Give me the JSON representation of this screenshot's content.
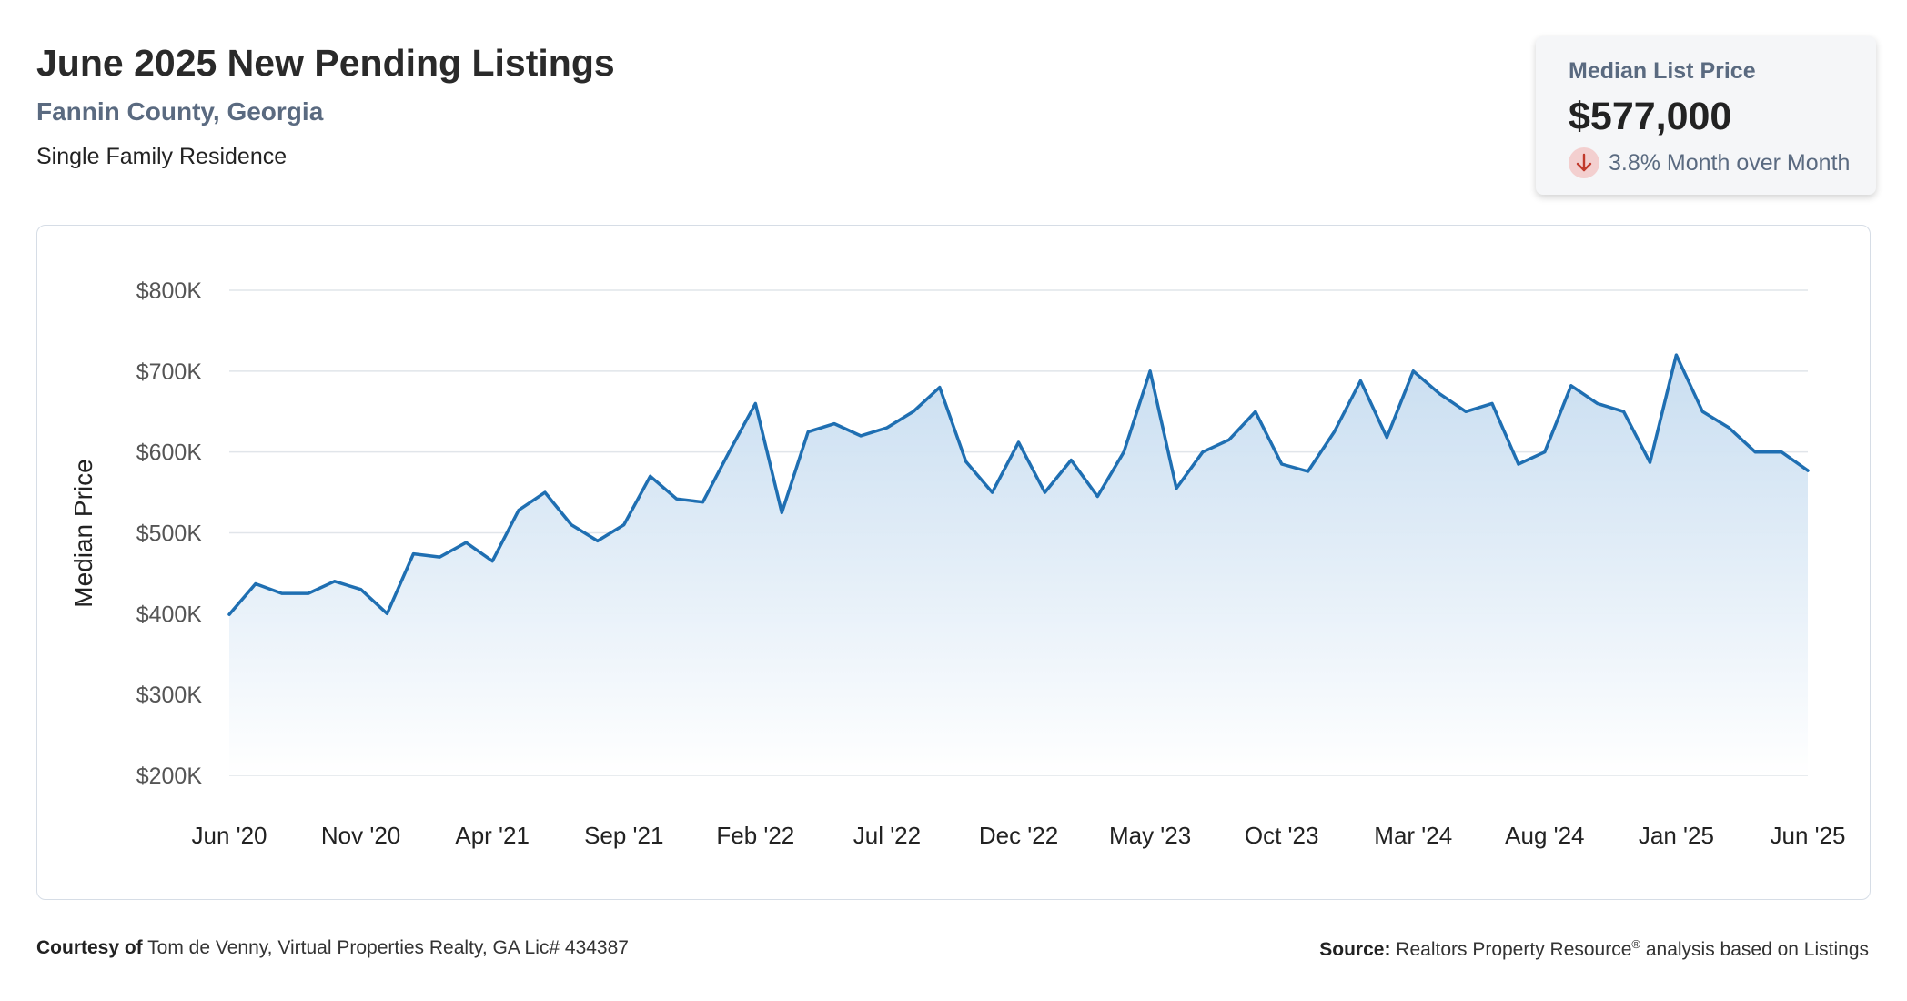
{
  "header": {
    "title": "June 2025 New Pending Listings",
    "subtitle": "Fannin County, Georgia",
    "category": "Single Family Residence"
  },
  "kpi": {
    "label": "Median List Price",
    "value": "$577,000",
    "change": "3.8% Month over Month",
    "direction_icon": "arrow-down-icon",
    "down_color": "#c0392b"
  },
  "footer": {
    "courtesy_label": "Courtesy of",
    "courtesy_text": "Tom de Venny, Virtual Properties Realty, GA Lic# 434387",
    "source_label": "Source:",
    "source_text_1": "Realtors Property Resource",
    "source_sup": "®",
    "source_text_2": "analysis based on Listings"
  },
  "chart_data": {
    "type": "area",
    "ylabel": "Median Price",
    "ylim": [
      200000,
      800000
    ],
    "yticks": [
      200000,
      300000,
      400000,
      500000,
      600000,
      700000,
      800000
    ],
    "ytick_labels": [
      "$200K",
      "$300K",
      "$400K",
      "$500K",
      "$600K",
      "$700K",
      "$800K"
    ],
    "x_tick_labels": [
      "Jun '20",
      "Nov '20",
      "Apr '21",
      "Sep '21",
      "Feb '22",
      "Jul '22",
      "Dec '22",
      "May '23",
      "Oct '23",
      "Mar '24",
      "Aug '24",
      "Jan '25",
      "Jun '25"
    ],
    "x_tick_every": 5,
    "grid": true,
    "line_color": "#1f6fb2",
    "fill_color": "#c9dff1",
    "x": [
      "Jun '20",
      "Jul '20",
      "Aug '20",
      "Sep '20",
      "Oct '20",
      "Nov '20",
      "Dec '20",
      "Jan '21",
      "Feb '21",
      "Mar '21",
      "Apr '21",
      "May '21",
      "Jun '21",
      "Jul '21",
      "Aug '21",
      "Sep '21",
      "Oct '21",
      "Nov '21",
      "Dec '21",
      "Jan '22",
      "Feb '22",
      "Mar '22",
      "Apr '22",
      "May '22",
      "Jun '22",
      "Jul '22",
      "Aug '22",
      "Sep '22",
      "Oct '22",
      "Nov '22",
      "Dec '22",
      "Jan '23",
      "Feb '23",
      "Mar '23",
      "Apr '23",
      "May '23",
      "Jun '23",
      "Jul '23",
      "Aug '23",
      "Sep '23",
      "Oct '23",
      "Nov '23",
      "Dec '23",
      "Jan '24",
      "Feb '24",
      "Mar '24",
      "Apr '24",
      "May '24",
      "Jun '24",
      "Jul '24",
      "Aug '24",
      "Sep '24",
      "Oct '24",
      "Nov '24",
      "Dec '24",
      "Jan '25",
      "Feb '25",
      "Mar '25",
      "Apr '25",
      "May '25",
      "Jun '25"
    ],
    "values": [
      399000,
      437000,
      425000,
      425000,
      440000,
      430000,
      400000,
      474000,
      470000,
      488000,
      465000,
      528000,
      550000,
      510000,
      490000,
      510000,
      570000,
      542000,
      538000,
      600000,
      660000,
      525000,
      625000,
      635000,
      620000,
      630000,
      650000,
      680000,
      588000,
      550000,
      612000,
      550000,
      590000,
      545000,
      600000,
      700000,
      555000,
      600000,
      615000,
      650000,
      585000,
      576000,
      625000,
      688000,
      618000,
      700000,
      672000,
      650000,
      660000,
      585000,
      600000,
      682000,
      660000,
      650000,
      587000,
      720000,
      650000,
      630000,
      600000,
      600000,
      577000
    ]
  }
}
